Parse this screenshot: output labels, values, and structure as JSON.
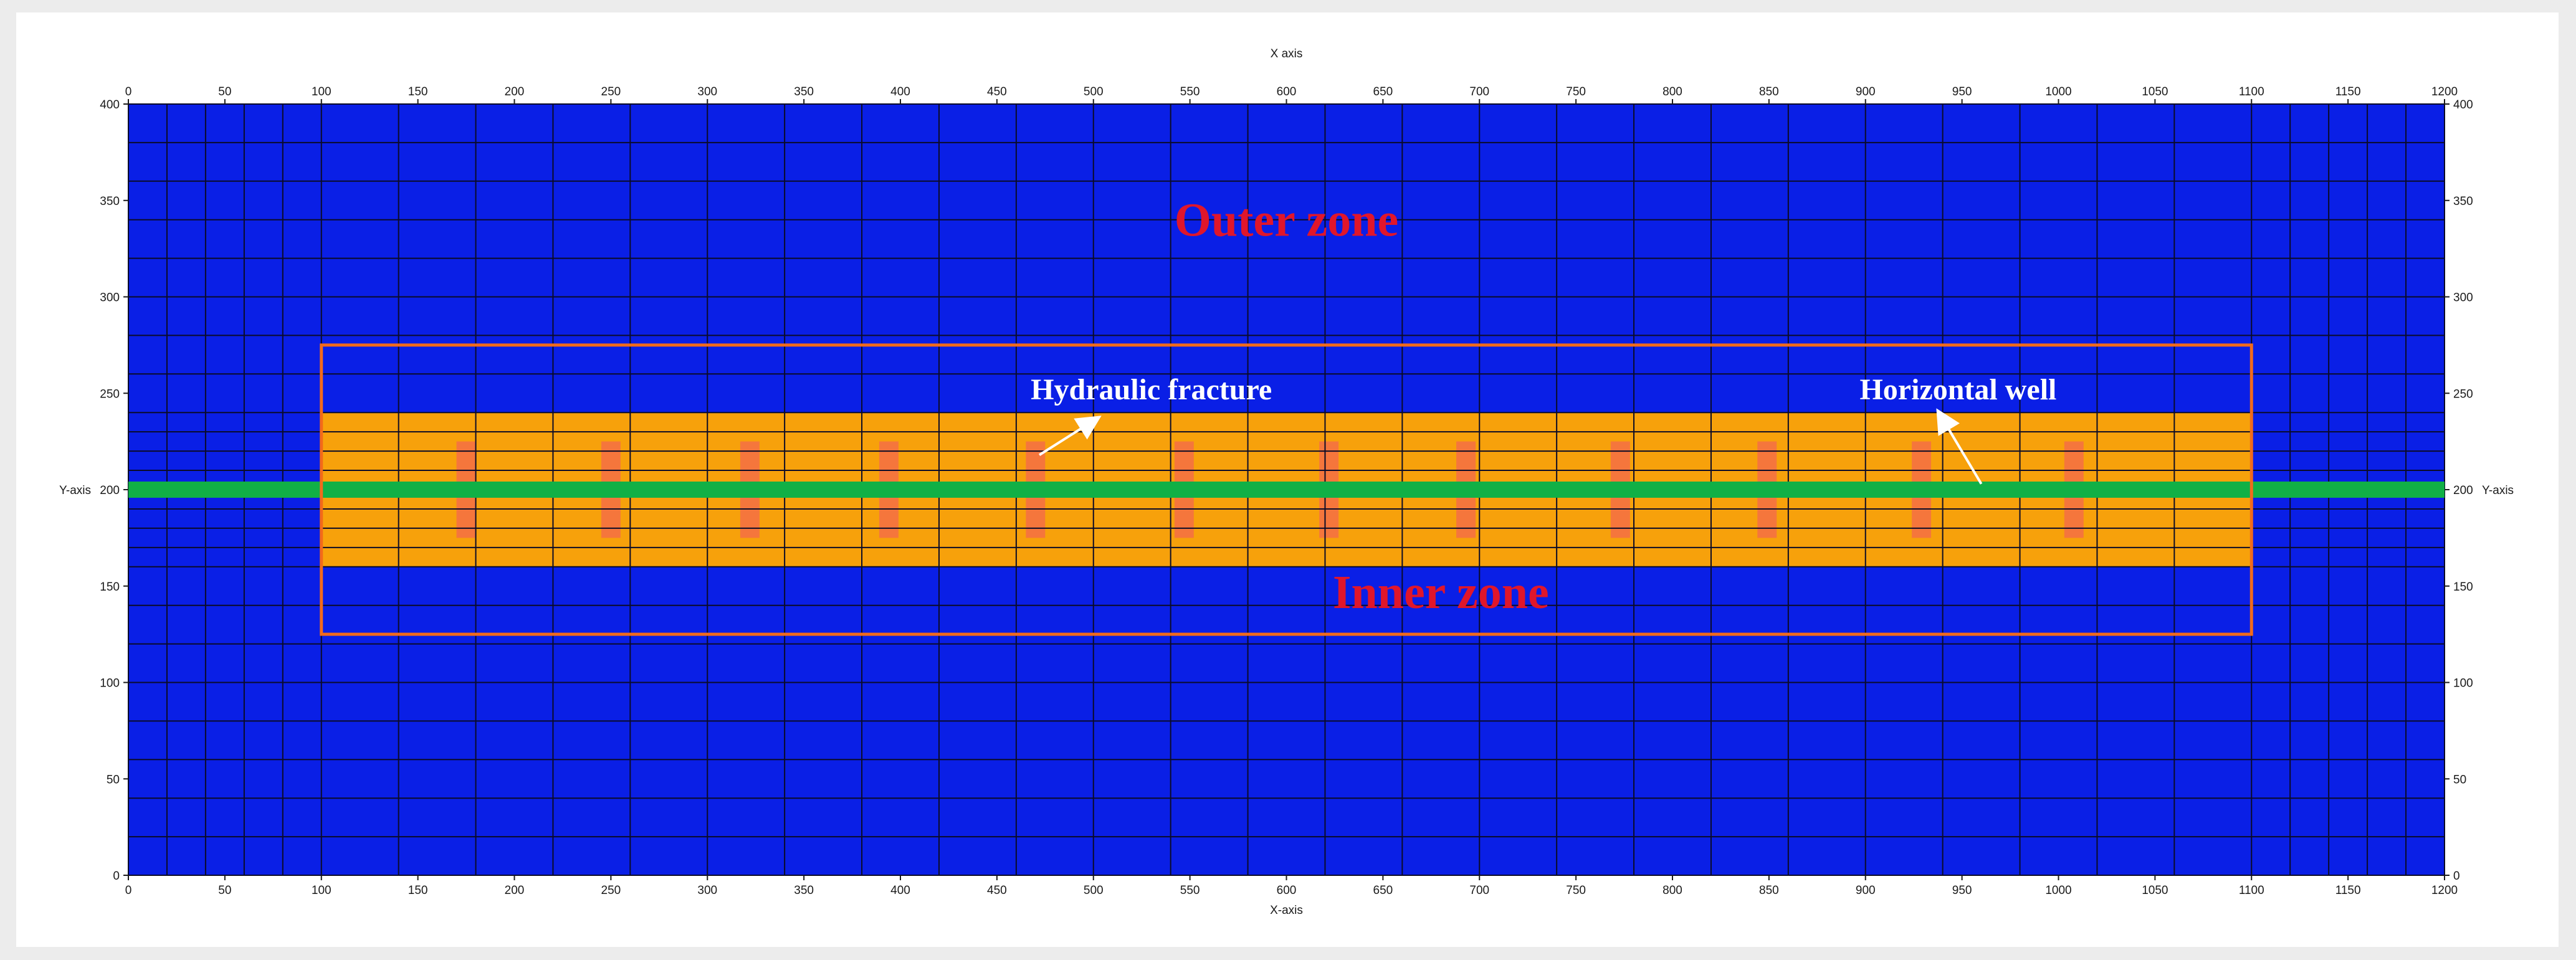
{
  "chart_data": {
    "type": "diagram",
    "x_axis": {
      "label": "X axis",
      "bottom_label": "X-axis",
      "min": 0,
      "max": 1200,
      "ticks": [
        0,
        50,
        100,
        150,
        200,
        250,
        300,
        350,
        400,
        450,
        500,
        550,
        600,
        650,
        700,
        750,
        800,
        850,
        900,
        950,
        1000,
        1050,
        1100,
        1150,
        1200
      ]
    },
    "y_axis": {
      "label": "Y-axis",
      "right_label": "Y-axis",
      "min": 0,
      "max": 400,
      "ticks": [
        0,
        50,
        100,
        150,
        200,
        250,
        300,
        350,
        400
      ]
    },
    "grid_x_lines": [
      0,
      20,
      40,
      60,
      80,
      100,
      140,
      180,
      220,
      260,
      300,
      340,
      380,
      420,
      460,
      500,
      540,
      580,
      620,
      660,
      700,
      740,
      780,
      820,
      860,
      900,
      940,
      980,
      1020,
      1060,
      1100,
      1120,
      1140,
      1160,
      1180,
      1200
    ],
    "grid_y_lines": [
      0,
      20,
      40,
      60,
      80,
      100,
      120,
      140,
      160,
      170,
      180,
      190,
      200,
      210,
      220,
      230,
      240,
      260,
      280,
      300,
      320,
      340,
      360,
      380,
      400
    ],
    "colors": {
      "reservoir": "#0a1fe6",
      "srv": "#f7a10b",
      "fracture": "#f5763c",
      "well": "#11b046",
      "zone_border": "#f26a1b",
      "grid": "#0b0b28",
      "zone_text": "#e0162b",
      "callout_text": "#ffffff"
    },
    "outer_zone": {
      "label": "Outer zone",
      "x": 600,
      "y": 340
    },
    "inner_zone": {
      "label": "Inner zone",
      "x": 680,
      "y": 147,
      "box": {
        "x_range": [
          100,
          1100
        ],
        "y_range": [
          125,
          275
        ]
      }
    },
    "srv_region": {
      "x_range": [
        100,
        1100
      ],
      "y_range": [
        160,
        240
      ]
    },
    "horizontal_well": {
      "y": 200,
      "x_range": [
        0,
        1200
      ],
      "label": "Horizontal well"
    },
    "hydraulic_fractures": {
      "label": "Hydraulic fracture",
      "half_width": 5,
      "y_range": [
        175,
        225
      ],
      "x_positions": [
        175,
        250,
        322,
        394,
        470,
        547,
        622,
        693,
        773,
        849,
        929,
        1008
      ]
    },
    "callouts": [
      {
        "text": "Hydraulic fracture",
        "label_x": 530,
        "label_y": 252,
        "arrow_from": [
          472,
          218
        ],
        "arrow_to": [
          502,
          237
        ]
      },
      {
        "text": "Horizontal well",
        "label_x": 948,
        "label_y": 252,
        "arrow_from": [
          960,
          203
        ],
        "arrow_to": [
          938,
          240
        ]
      }
    ]
  }
}
